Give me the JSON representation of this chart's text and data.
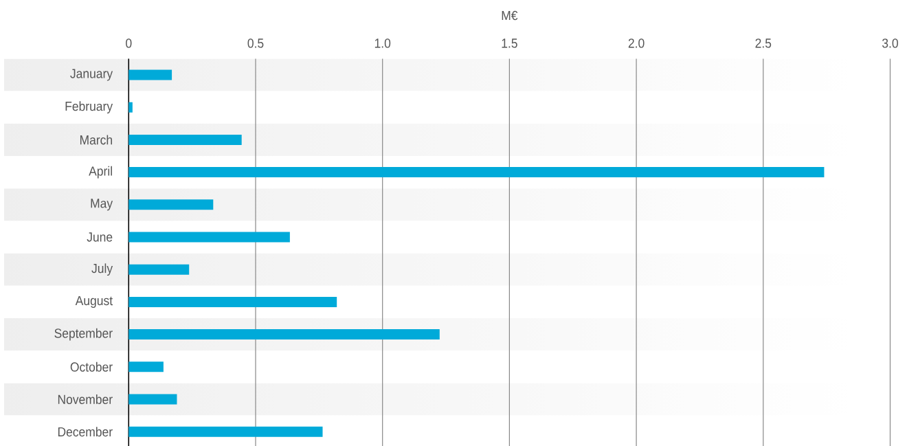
{
  "chart_data": {
    "type": "bar",
    "orientation": "horizontal",
    "xlabel": "M€",
    "categories": [
      "January",
      "February",
      "March",
      "April",
      "May",
      "June",
      "July",
      "August",
      "September",
      "October",
      "November",
      "December"
    ],
    "values": [
      0.17,
      0.015,
      0.445,
      2.74,
      0.333,
      0.635,
      0.238,
      0.82,
      1.225,
      0.137,
      0.19,
      0.764
    ],
    "color": "#00aad9",
    "xlim": [
      0,
      3.0
    ],
    "xticks": [
      0,
      0.5,
      {
        "value": 1,
        "label": "1.0"
      },
      1.5,
      {
        "value": 2,
        "label": "2.0"
      },
      2.5,
      {
        "value": 3,
        "label": "3.0"
      }
    ],
    "bands": [
      {
        "axis": "y",
        "from": "January",
        "to": "January",
        "color": "#eeeeee"
      },
      {
        "axis": "y",
        "from": "March",
        "to": "March",
        "color": "#eeeeee"
      },
      {
        "axis": "y",
        "from": "May",
        "to": "May",
        "color": "#eeeeee"
      },
      {
        "axis": "y",
        "from": "July",
        "to": "July",
        "color": "#eeeeee"
      },
      {
        "axis": "y",
        "from": "September",
        "to": "September",
        "color": "#eeeeee"
      },
      {
        "axis": "y",
        "from": "November",
        "to": "November",
        "color": "#eeeeee"
      }
    ],
    "grid": "x"
  }
}
